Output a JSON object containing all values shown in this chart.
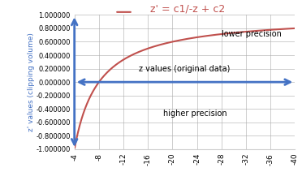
{
  "title": "z' = c1/-z + c2",
  "title_color": "#c0504d",
  "xlabel": "z values (original data)",
  "ylabel": "z' values (clipping volume)",
  "xlim_left": -4,
  "xlim_right": -40,
  "ylim": [
    -1.0,
    1.0
  ],
  "xticks": [
    -4,
    -8,
    -12,
    -16,
    -20,
    -24,
    -28,
    -32,
    -36,
    -40
  ],
  "ytick_labels": [
    "1.000000",
    "0.800000",
    "0.600000",
    "0.400000",
    "0.200000",
    "0.000000",
    "-0.200000",
    "-0.400000",
    "-0.600000",
    "-0.800000",
    "-1.000000"
  ],
  "ytick_values": [
    1.0,
    0.8,
    0.6,
    0.4,
    0.2,
    0.0,
    -0.2,
    -0.4,
    -0.6,
    -0.8,
    -1.0
  ],
  "c1": -8.0,
  "c2": 1.0,
  "line_color": "#c0504d",
  "annotation_lower": "lower precision",
  "annotation_higher": "higher precision",
  "arrow_color": "#4472c4",
  "background_color": "#ffffff",
  "grid_color": "#aaaaaa",
  "ylabel_color": "#4472c4",
  "figsize": [
    3.72,
    2.12
  ],
  "dpi": 100
}
